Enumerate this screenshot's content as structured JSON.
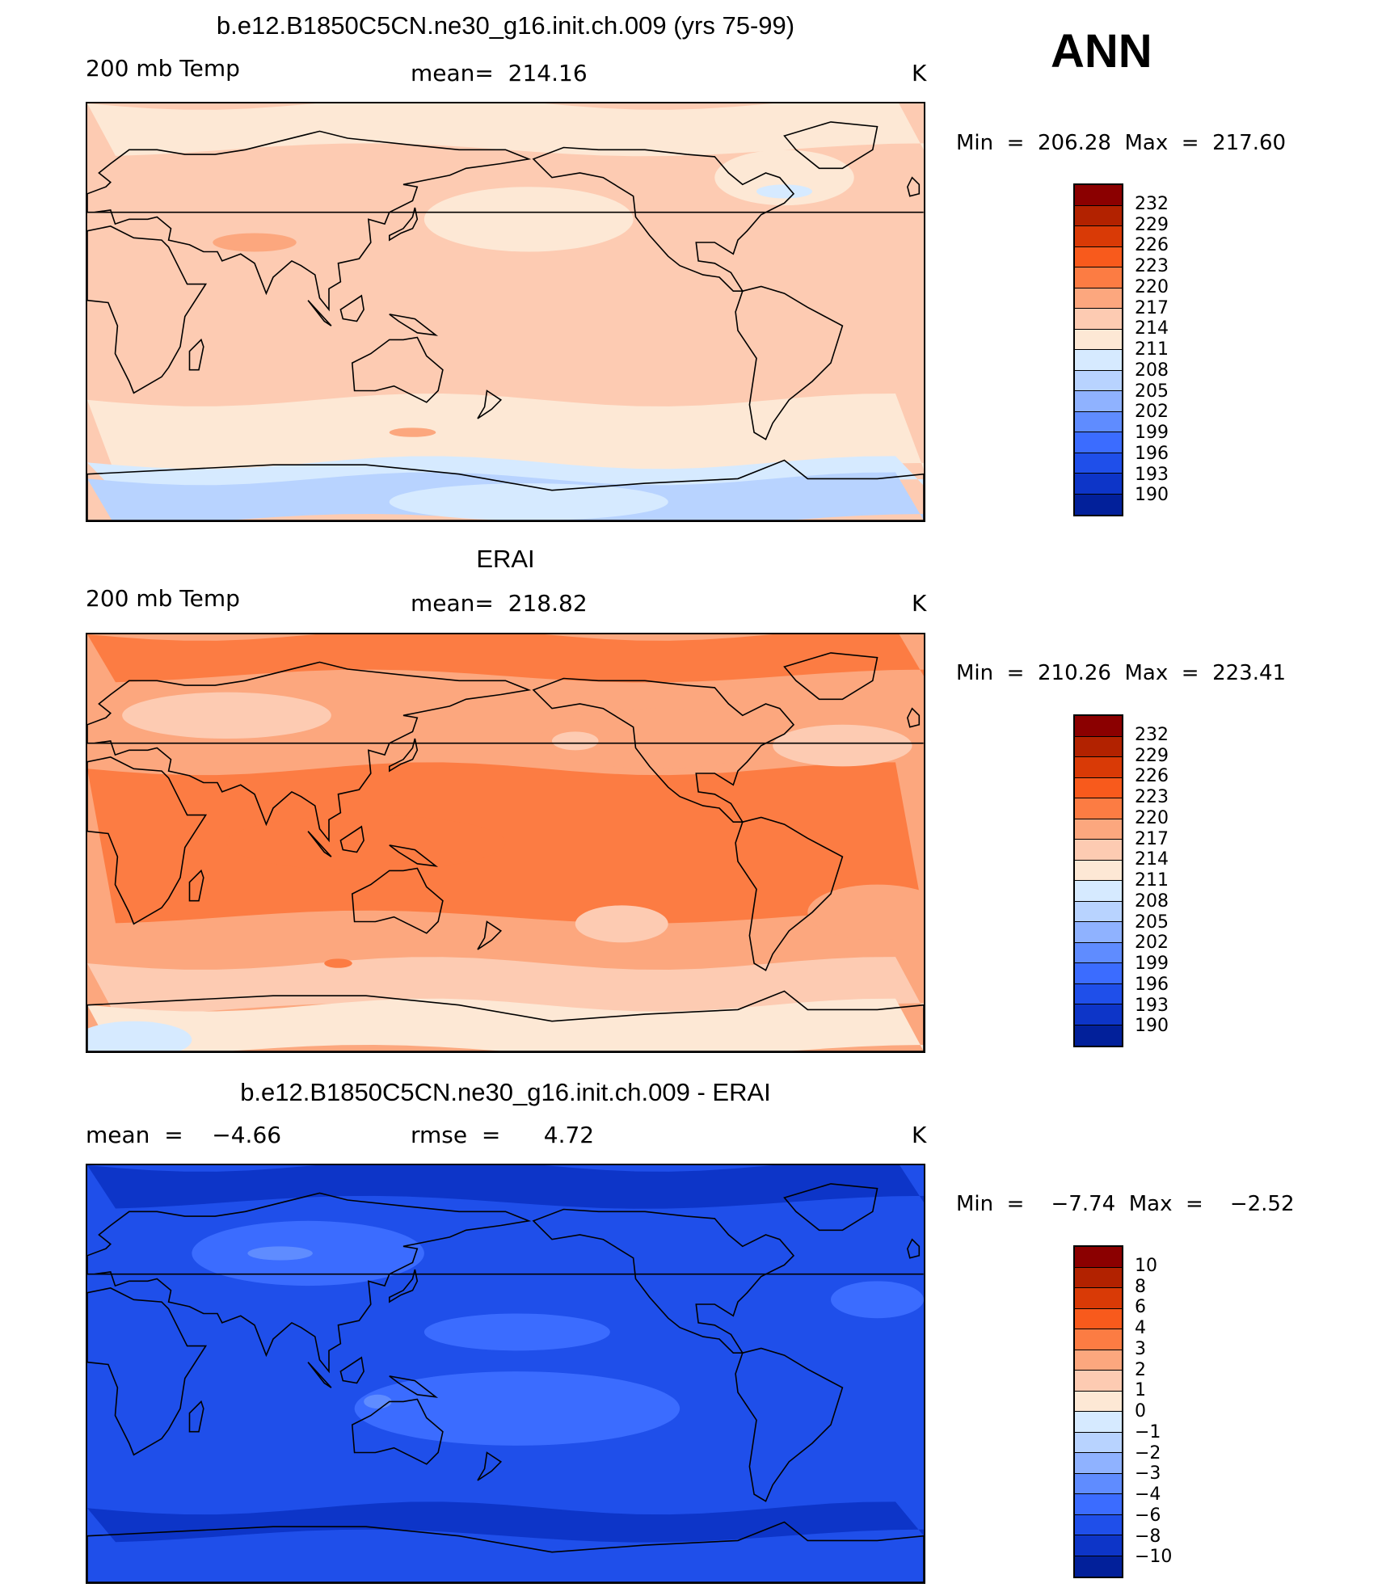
{
  "season": "ANN",
  "colorbar_abs": {
    "colors": [
      "#8b0000",
      "#b22200",
      "#d93a06",
      "#f85a1c",
      "#fc7c43",
      "#fca77e",
      "#fdcbb2",
      "#fde8d5",
      "#d6eaff",
      "#b8d3ff",
      "#8fb2ff",
      "#5f8cff",
      "#3b6cff",
      "#1f4fea",
      "#0d35c8",
      "#02209a"
    ],
    "ticks": [
      "232",
      "229",
      "226",
      "223",
      "220",
      "217",
      "214",
      "211",
      "208",
      "205",
      "202",
      "199",
      "196",
      "193",
      "190"
    ]
  },
  "colorbar_diff": {
    "colors": [
      "#8b0000",
      "#b22200",
      "#d93a06",
      "#f85a1c",
      "#fc7c43",
      "#fca77e",
      "#fdcbb2",
      "#fde8d5",
      "#d6eaff",
      "#b8d3ff",
      "#8fb2ff",
      "#5f8cff",
      "#3b6cff",
      "#1f4fea",
      "#0d35c8",
      "#02209a"
    ],
    "ticks": [
      "10",
      "8",
      "6",
      "4",
      "3",
      "2",
      "1",
      "0",
      "−1",
      "−2",
      "−3",
      "−4",
      "−6",
      "−8",
      "−10"
    ]
  },
  "panels": [
    {
      "title": "b.e12.B1850C5CN.ne30_g16.init.ch.009 (yrs 75-99)",
      "left_label": "200 mb Temp",
      "center_label": "mean=  214.16",
      "units": "K",
      "min_max": "Min  =  206.28  Max  =  217.60",
      "field": {
        "background": "#fdcbb2",
        "regions": [
          {
            "kind": "band",
            "lat_top": 90,
            "lat_bottom": 70,
            "color": "#fde8d5"
          },
          {
            "kind": "band",
            "lat_top": -38,
            "lat_bottom": -68,
            "color": "#fde8d5"
          },
          {
            "kind": "band",
            "lat_top": -65,
            "lat_bottom": -75,
            "color": "#d6eaff"
          },
          {
            "kind": "band",
            "lat_top": -72,
            "lat_bottom": -90,
            "color": "#b8d3ff"
          },
          {
            "kind": "blob",
            "lon": 190,
            "lat": 40,
            "rlon": 45,
            "rlat": 14,
            "color": "#fde8d5"
          },
          {
            "kind": "blob",
            "lon": 300,
            "lat": 58,
            "rlon": 30,
            "rlat": 12,
            "color": "#fde8d5"
          },
          {
            "kind": "blob",
            "lon": 300,
            "lat": 52,
            "rlon": 12,
            "rlat": 3,
            "color": "#d6eaff"
          },
          {
            "kind": "blob",
            "lon": 72,
            "lat": 30,
            "rlon": 18,
            "rlat": 4,
            "color": "#fca77e"
          },
          {
            "kind": "blob",
            "lon": 140,
            "lat": -52,
            "rlon": 10,
            "rlat": 2,
            "color": "#fca77e"
          },
          {
            "kind": "blob",
            "lon": 190,
            "lat": -82,
            "rlon": 60,
            "rlat": 8,
            "color": "#d6eaff"
          }
        ]
      }
    },
    {
      "title": "ERAI",
      "left_label": "200 mb Temp",
      "center_label": "mean=  218.82",
      "units": "K",
      "min_max": "Min  =  210.26  Max  =  223.41",
      "field": {
        "background": "#fca77e",
        "regions": [
          {
            "kind": "band",
            "lat_top": 90,
            "lat_bottom": 72,
            "color": "#fc7c43"
          },
          {
            "kind": "band",
            "lat_top": 32,
            "lat_bottom": -32,
            "color": "#fc7c43"
          },
          {
            "kind": "band",
            "lat_top": -52,
            "lat_bottom": -72,
            "color": "#fdcbb2"
          },
          {
            "kind": "band",
            "lat_top": -70,
            "lat_bottom": -90,
            "color": "#fde8d5"
          },
          {
            "kind": "blob",
            "lon": 60,
            "lat": 55,
            "rlon": 45,
            "rlat": 10,
            "color": "#fdcbb2"
          },
          {
            "kind": "blob",
            "lon": 245,
            "lat": 45,
            "rlon": 50,
            "rlat": 13,
            "color": "#fca77e"
          },
          {
            "kind": "blob",
            "lon": 210,
            "lat": 44,
            "rlon": 10,
            "rlat": 4,
            "color": "#fdcbb2"
          },
          {
            "kind": "blob",
            "lon": 325,
            "lat": 42,
            "rlon": 30,
            "rlat": 9,
            "color": "#fdcbb2"
          },
          {
            "kind": "blob",
            "lon": 230,
            "lat": -35,
            "rlon": 20,
            "rlat": 8,
            "color": "#fdcbb2"
          },
          {
            "kind": "blob",
            "lon": 340,
            "lat": -30,
            "rlon": 30,
            "rlat": 12,
            "color": "#fca77e"
          },
          {
            "kind": "blob",
            "lon": 120,
            "lat": 0,
            "rlon": 60,
            "rlat": 12,
            "color": "#fc7c43"
          },
          {
            "kind": "blob",
            "lon": 108,
            "lat": -52,
            "rlon": 6,
            "rlat": 2,
            "color": "#fc7c43"
          },
          {
            "kind": "blob",
            "lon": 20,
            "lat": -85,
            "rlon": 25,
            "rlat": 8,
            "color": "#d6eaff"
          }
        ]
      }
    },
    {
      "title": "b.e12.B1850C5CN.ne30_g16.init.ch.009 - ERAI",
      "left_label": "mean  =    −4.66",
      "center_label": "rmse  =      4.72",
      "units": "K",
      "min_max": "Min  =    −7.74  Max  =    −2.52",
      "field": {
        "background": "#1f4fea",
        "regions": [
          {
            "kind": "band",
            "lat_top": 90,
            "lat_bottom": 74,
            "color": "#0d35c8"
          },
          {
            "kind": "band",
            "lat_top": -58,
            "lat_bottom": -70,
            "color": "#0d35c8"
          },
          {
            "kind": "blob",
            "lon": 95,
            "lat": 52,
            "rlon": 50,
            "rlat": 14,
            "color": "#3b6cff"
          },
          {
            "kind": "blob",
            "lon": 83,
            "lat": 52,
            "rlon": 14,
            "rlat": 3,
            "color": "#5f8cff"
          },
          {
            "kind": "blob",
            "lon": 185,
            "lat": -15,
            "rlon": 70,
            "rlat": 16,
            "color": "#3b6cff"
          },
          {
            "kind": "blob",
            "lon": 185,
            "lat": 18,
            "rlon": 40,
            "rlat": 8,
            "color": "#3b6cff"
          },
          {
            "kind": "blob",
            "lon": 340,
            "lat": 32,
            "rlon": 20,
            "rlat": 8,
            "color": "#3b6cff"
          },
          {
            "kind": "blob",
            "lon": 125,
            "lat": -12,
            "rlon": 6,
            "rlat": 3,
            "color": "#5f8cff"
          }
        ]
      }
    }
  ]
}
